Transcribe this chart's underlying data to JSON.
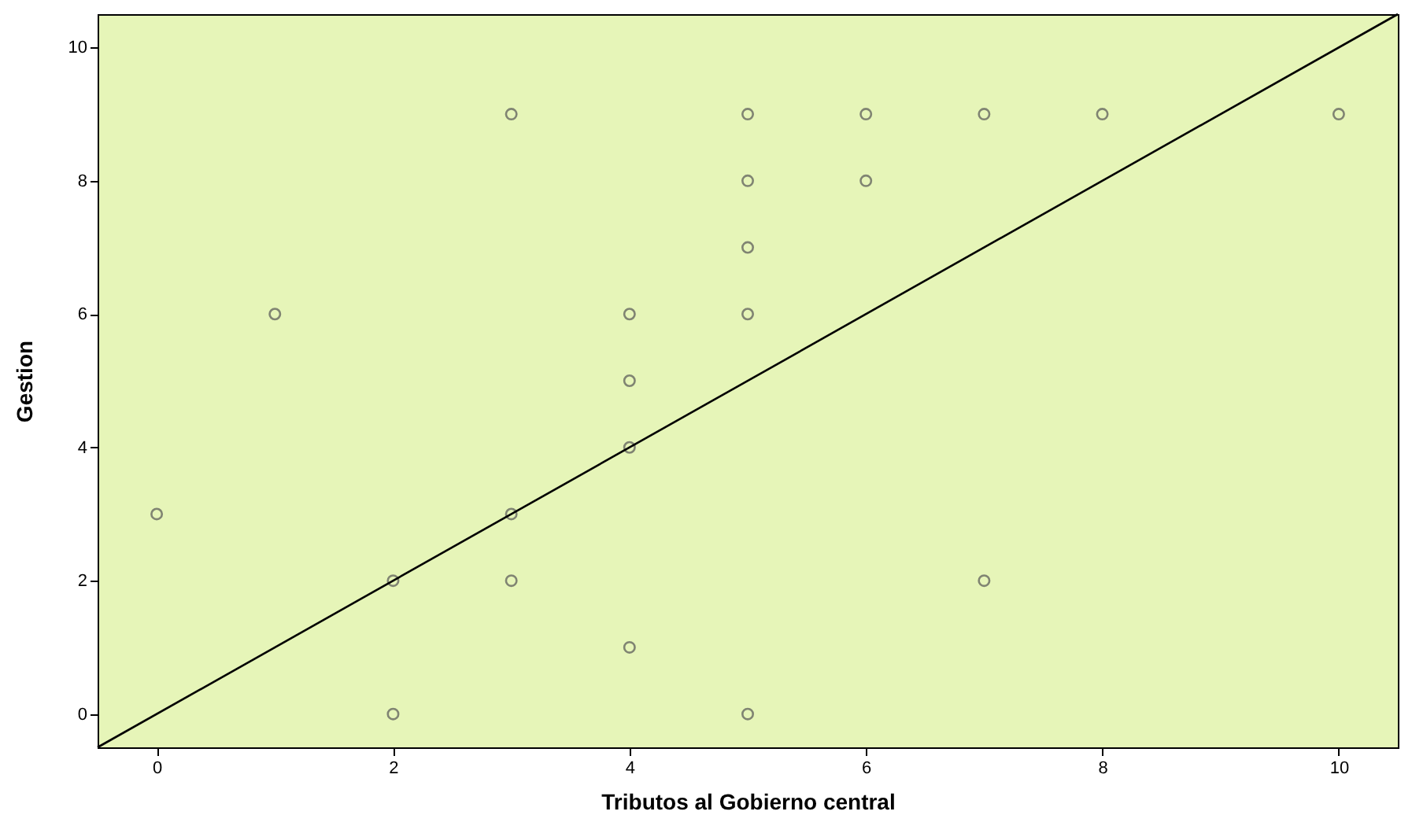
{
  "chart_data": {
    "type": "scatter",
    "xlabel": "Tributos al Gobierno central",
    "ylabel": "Gestion",
    "xlim": [
      -0.5,
      10.5
    ],
    "ylim": [
      -0.5,
      10.5
    ],
    "xticks": [
      0,
      2,
      4,
      6,
      8,
      10
    ],
    "yticks": [
      0,
      2,
      4,
      6,
      8,
      10
    ],
    "grid": false,
    "series": [
      {
        "color": "#555555",
        "marker": "circle",
        "x": [
          0,
          1,
          2,
          2,
          3,
          3,
          3,
          4,
          4,
          4,
          4,
          5,
          5,
          5,
          5,
          5,
          6,
          6,
          7,
          7,
          8,
          10
        ],
        "values": [
          3,
          6,
          2,
          0,
          9,
          3,
          2,
          6,
          5,
          4,
          1,
          9,
          8,
          7,
          6,
          0,
          9,
          8,
          9,
          2,
          9,
          9
        ]
      },
      {
        "type": "line",
        "color": "#000000",
        "line_style": "solid",
        "x": [
          -0.5,
          10.5
        ],
        "values": [
          -0.5,
          10.5
        ]
      }
    ]
  }
}
